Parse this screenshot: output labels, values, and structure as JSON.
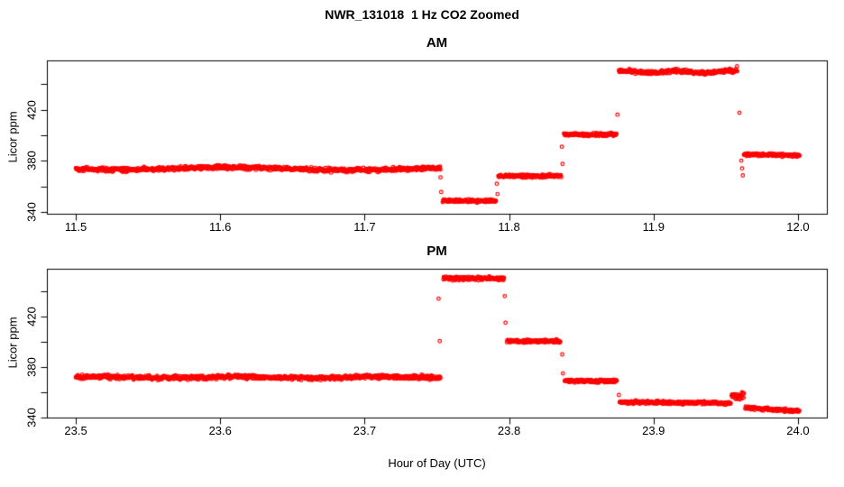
{
  "figure": {
    "title": "NWR_131018  1 Hz CO2 Zoomed",
    "xlabel": "Hour of Day (UTC)",
    "marker_color": "#FF0000",
    "axis_color": "#000000",
    "background": "#FFFFFF"
  },
  "chart_data": [
    {
      "type": "scatter",
      "panel": "AM",
      "title": "AM",
      "ylabel": "Licor ppm",
      "xlim": [
        11.48,
        12.02
      ],
      "ylim": [
        338.5,
        458.5
      ],
      "xticks": [
        11.5,
        11.6,
        11.7,
        11.8,
        11.9,
        12.0
      ],
      "xtick_labels": [
        "11.5",
        "11.6",
        "11.7",
        "11.8",
        "11.9",
        "12.0"
      ],
      "yticks": [
        340,
        360,
        380,
        400,
        420,
        440
      ],
      "ytick_labels": [
        "340",
        "",
        "380",
        "",
        "420",
        ""
      ],
      "marker": "open-circle",
      "sample_rate_hz": 1,
      "segments": [
        {
          "x0": 11.5,
          "x1": 11.7525,
          "y": 374.0,
          "y_end": 373.5,
          "noise": 1.5,
          "wave_amp": 1.0,
          "wave_cycles": 1.6,
          "wave_phase": 3.5
        },
        {
          "x0": 11.754,
          "x1": 11.791,
          "y": 348.5,
          "noise": 1.2
        },
        {
          "x0": 11.7925,
          "x1": 11.836,
          "y": 368.0,
          "noise": 1.2
        },
        {
          "x0": 11.838,
          "x1": 11.8745,
          "y": 400.5,
          "noise": 1.2
        },
        {
          "x0": 11.876,
          "x1": 11.9575,
          "y": 449.5,
          "noise": 1.4,
          "wave_amp": 0.7,
          "wave_cycles": 2.2,
          "wave_phase": 1.0
        },
        {
          "x0": 11.9625,
          "x1": 12.001,
          "y": 385.0,
          "y_end": 384.0,
          "noise": 1.1
        }
      ],
      "outlier_points": [
        [
          11.7525,
          367.0
        ],
        [
          11.753,
          355.5
        ],
        [
          11.7915,
          362.0
        ],
        [
          11.792,
          354.0
        ],
        [
          11.8365,
          391.0
        ],
        [
          11.837,
          377.5
        ],
        [
          11.875,
          416.0
        ],
        [
          11.9578,
          454.0
        ],
        [
          11.958,
          450.0
        ],
        [
          11.9595,
          417.5
        ],
        [
          11.9608,
          380.0
        ],
        [
          11.9613,
          374.0
        ],
        [
          11.9618,
          368.5
        ]
      ]
    },
    {
      "type": "scatter",
      "panel": "PM",
      "title": "PM",
      "ylabel": "Licor ppm",
      "xlim": [
        23.48,
        24.02
      ],
      "ylim": [
        340.2,
        457.6
      ],
      "xticks": [
        23.5,
        23.6,
        23.7,
        23.8,
        23.9,
        24.0
      ],
      "xtick_labels": [
        "23.5",
        "23.6",
        "23.7",
        "23.8",
        "23.9",
        "24.0"
      ],
      "yticks": [
        340,
        360,
        380,
        400,
        420,
        440
      ],
      "ytick_labels": [
        "340",
        "",
        "380",
        "",
        "420",
        ""
      ],
      "marker": "open-circle",
      "sample_rate_hz": 1,
      "segments": [
        {
          "x0": 23.5,
          "x1": 23.7525,
          "y": 372.0,
          "noise": 1.6,
          "wave_amp": 0.5,
          "wave_cycles": 2.5,
          "wave_phase": 0.8
        },
        {
          "x0": 23.7545,
          "x1": 23.7965,
          "y": 450.0,
          "noise": 1.4
        },
        {
          "x0": 23.7985,
          "x1": 23.8355,
          "y": 400.5,
          "noise": 1.2
        },
        {
          "x0": 23.8385,
          "x1": 23.8745,
          "y": 369.0,
          "noise": 1.2
        },
        {
          "x0": 23.8765,
          "x1": 23.9535,
          "y": 352.5,
          "y_end": 351.5,
          "noise": 1.2
        },
        {
          "x0": 23.954,
          "x1": 23.9625,
          "y": 357.0,
          "noise": 3.2
        },
        {
          "x0": 23.9635,
          "x1": 24.001,
          "y": 348.0,
          "y_end": 345.2,
          "noise": 1.1
        }
      ],
      "outlier_points": [
        [
          23.7512,
          434.0
        ],
        [
          23.752,
          400.5
        ],
        [
          23.797,
          436.0
        ],
        [
          23.7975,
          415.0
        ],
        [
          23.8368,
          390.0
        ],
        [
          23.8373,
          375.0
        ],
        [
          23.876,
          358.0
        ]
      ]
    }
  ]
}
